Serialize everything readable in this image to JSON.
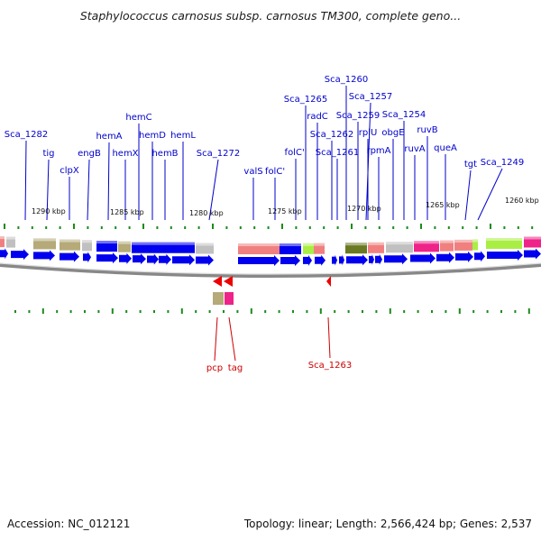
{
  "title": "Staphylococcus carnosus subsp. carnosus TM300, complete geno...",
  "accession_label": "Accession: NC_012121",
  "topology_label": "Topology: linear; Length: 2,566,424 bp; Genes: 2,537",
  "ruler_labels": [
    "1290 kbp",
    "1285 kbp",
    "1280 kbp",
    "1275 kbp",
    "1270 kbp",
    "1265 kbp",
    "1260 kbp"
  ],
  "top_gene_labels": [
    "Sca_1282",
    "tig",
    "clpX",
    "engB",
    "hemA",
    "hemC",
    "hemX",
    "hemD",
    "hemB",
    "hemL",
    "Sca_1272",
    "valS",
    "folC'",
    "folC''",
    "Sca_1265",
    "radC",
    "Sca_1262",
    "Sca_1261",
    "Sca_1260",
    "Sca_1259",
    "Sca_1257",
    "rplU",
    "rpmA",
    "obgE",
    "Sca_1254",
    "ruvA",
    "ruvB",
    "queA",
    "tgt",
    "Sca_1249"
  ],
  "bottom_gene_labels": [
    "pcp",
    "tag",
    "Sca_1263"
  ],
  "colors": {
    "forward_gene": "#0000ee",
    "reverse_gene": "#ee0000",
    "label_top": "#0000cc",
    "label_bottom": "#cc0000",
    "tick": "#1a8c1a",
    "cog_khaki": "#b5aa78",
    "cog_salmon": "#f08080",
    "cog_magenta": "#ee2288",
    "cog_lime": "#aaee44",
    "cog_olive": "#6b7a22",
    "cog_gray": "#c0c0c0"
  }
}
